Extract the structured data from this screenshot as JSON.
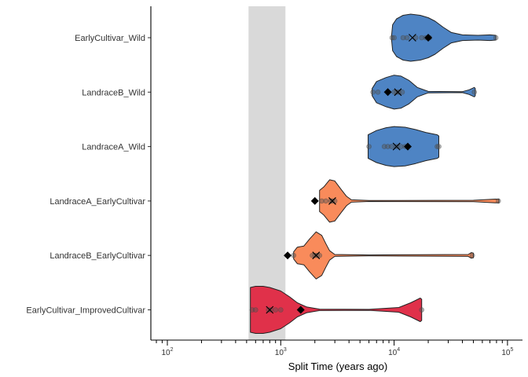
{
  "chart_data": {
    "type": "violin",
    "xlabel": "Split Time (years ago)",
    "ylabel": "",
    "x_scale": "log10",
    "xlim": [
      75,
      120000
    ],
    "x_ticks": [
      {
        "value": 100,
        "base": "10",
        "exp": "2"
      },
      {
        "value": 1000,
        "base": "10",
        "exp": "3"
      },
      {
        "value": 10000,
        "base": "10",
        "exp": "4"
      },
      {
        "value": 100000,
        "base": "10",
        "exp": "5"
      }
    ],
    "shaded_region": {
      "xmin": 520,
      "xmax": 1100,
      "color": "#d9d9d9"
    },
    "grid": false,
    "legend": "none",
    "categories": [
      {
        "name": "EarlyCultivar_Wild",
        "color": "#4e84c4",
        "density": [
          [
            9500,
            0.1
          ],
          [
            9700,
            0.55
          ],
          [
            10500,
            0.8
          ],
          [
            12000,
            0.95
          ],
          [
            14000,
            1.0
          ],
          [
            17000,
            0.95
          ],
          [
            20000,
            0.85
          ],
          [
            23000,
            0.7
          ],
          [
            27000,
            0.45
          ],
          [
            32000,
            0.22
          ],
          [
            40000,
            0.12
          ],
          [
            55000,
            0.1
          ],
          [
            70000,
            0.12
          ],
          [
            79000,
            0.1
          ]
        ],
        "points": [
          9600,
          10000,
          12000,
          13000,
          15500,
          17500,
          19000,
          20500,
          79000
        ],
        "mean": 14500,
        "median": 20000
      },
      {
        "name": "LandraceB_Wild",
        "color": "#4e84c4",
        "density": [
          [
            6400,
            0.15
          ],
          [
            7000,
            0.45
          ],
          [
            8500,
            0.62
          ],
          [
            10000,
            0.72
          ],
          [
            11500,
            0.68
          ],
          [
            13500,
            0.5
          ],
          [
            16000,
            0.2
          ],
          [
            20000,
            0.03
          ],
          [
            40000,
            0.02
          ],
          [
            46000,
            0.1
          ],
          [
            51000,
            0.2
          ],
          [
            52000,
            0.15
          ]
        ],
        "points": [
          6500,
          7200,
          8800,
          10000,
          10500,
          11000,
          11800,
          51000
        ],
        "mean": 10800,
        "median": 8800
      },
      {
        "name": "LandraceA_Wild",
        "color": "#4e84c4",
        "density": [
          [
            5900,
            0.5
          ],
          [
            7000,
            0.68
          ],
          [
            8500,
            0.8
          ],
          [
            10000,
            0.85
          ],
          [
            12500,
            0.82
          ],
          [
            15500,
            0.72
          ],
          [
            19000,
            0.6
          ],
          [
            24000,
            0.5
          ],
          [
            24800,
            0.45
          ]
        ],
        "points": [
          6000,
          8200,
          8800,
          9500,
          10500,
          11500,
          12500,
          24000,
          24800
        ],
        "mean": 10500,
        "median": 13200
      },
      {
        "name": "LandraceA_EarlyCultivar",
        "color": "#f98b5b",
        "density": [
          [
            2200,
            0.45
          ],
          [
            2400,
            0.6
          ],
          [
            2700,
            0.9
          ],
          [
            3000,
            0.85
          ],
          [
            3400,
            0.5
          ],
          [
            3800,
            0.2
          ],
          [
            4200,
            0.05
          ],
          [
            6000,
            0.02
          ],
          [
            50000,
            0.03
          ],
          [
            78000,
            0.08
          ],
          [
            84000,
            0.08
          ]
        ],
        "points": [
          2300,
          2500,
          2750,
          2850,
          3000,
          83000
        ],
        "mean": 2850,
        "median": 2000
      },
      {
        "name": "LandraceB_EarlyCultivar",
        "color": "#f98b5b",
        "density": [
          [
            1300,
            0.15
          ],
          [
            1400,
            0.35
          ],
          [
            1600,
            0.4
          ],
          [
            1800,
            0.7
          ],
          [
            2050,
            1.0
          ],
          [
            2300,
            0.85
          ],
          [
            2500,
            0.5
          ],
          [
            2700,
            0.2
          ],
          [
            3000,
            0.04
          ],
          [
            6000,
            0.02
          ],
          [
            45000,
            0.04
          ],
          [
            48000,
            0.12
          ],
          [
            50000,
            0.1
          ]
        ],
        "points": [
          1300,
          1900,
          2000,
          2100,
          2200,
          49000
        ],
        "mean": 2050,
        "median": 1150
      },
      {
        "name": "EarlyCultivar_ImprovedCultivar",
        "color": "#e0314a",
        "density": [
          [
            540,
            0.95
          ],
          [
            600,
            1.0
          ],
          [
            700,
            1.0
          ],
          [
            800,
            0.95
          ],
          [
            1000,
            0.8
          ],
          [
            1200,
            0.55
          ],
          [
            1400,
            0.3
          ],
          [
            1700,
            0.12
          ],
          [
            2200,
            0.03
          ],
          [
            6000,
            0.02
          ],
          [
            11000,
            0.1
          ],
          [
            14000,
            0.3
          ],
          [
            17000,
            0.5
          ],
          [
            17500,
            0.45
          ]
        ],
        "points": [
          560,
          600,
          780,
          820,
          900,
          1000,
          17500
        ],
        "mean": 800,
        "median": 1500
      }
    ]
  }
}
